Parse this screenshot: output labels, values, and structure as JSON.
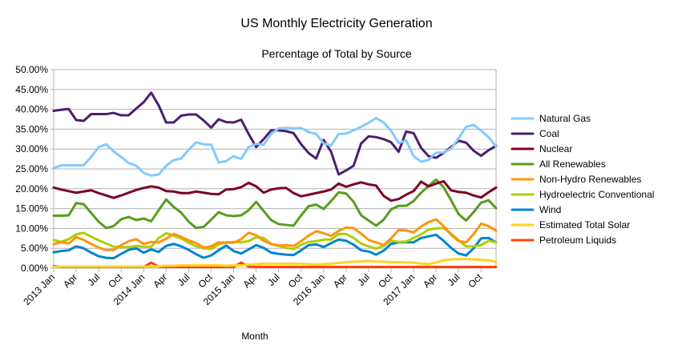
{
  "chart_data": {
    "type": "line",
    "title": "US Monthly Electricity Generation",
    "subtitle": "Percentage of Total by Source",
    "xlabel": "Month",
    "ylabel": "",
    "ylim": [
      0,
      50
    ],
    "y_ticks": [
      "0.00%",
      "5.00%",
      "10.00%",
      "15.00%",
      "20.00%",
      "25.00%",
      "30.00%",
      "35.00%",
      "40.00%",
      "45.00%",
      "50.00%"
    ],
    "x_tick_labels": [
      "2013 Jan",
      "Apr",
      "Jul",
      "Oct",
      "2014 Jan",
      "Apr",
      "Jul",
      "Oct",
      "2015 Jan",
      "Apr",
      "Jul",
      "Oct",
      "2016 Jan",
      "Apr",
      "Jul",
      "Oct",
      "2017 Jan",
      "Apr",
      "Jul",
      "Oct"
    ],
    "grid": "horizontal",
    "legend_position": "right",
    "x_count": 60,
    "series": [
      {
        "name": "Natural Gas",
        "color": "#83CAFF",
        "values": [
          25.2,
          25.9,
          25.9,
          25.9,
          25.9,
          28.0,
          30.5,
          31.2,
          29.4,
          28.0,
          26.5,
          25.8,
          24.0,
          23.3,
          23.6,
          25.8,
          27.2,
          27.6,
          29.8,
          31.7,
          31.2,
          31.1,
          26.6,
          27.0,
          28.2,
          27.5,
          30.5,
          31.3,
          31.1,
          33.8,
          35.2,
          35.3,
          35.2,
          35.3,
          34.3,
          33.8,
          31.4,
          30.9,
          33.8,
          33.9,
          34.7,
          35.6,
          36.6,
          37.8,
          36.7,
          34.6,
          31.5,
          32.2,
          28.2,
          26.8,
          27.3,
          29.1,
          29.1,
          30.1,
          32.7,
          35.6,
          36.1,
          34.6,
          33.0,
          30.6
        ]
      },
      {
        "name": "Coal",
        "color": "#4B1F6F",
        "values": [
          39.6,
          39.9,
          40.1,
          37.3,
          37.1,
          38.8,
          38.8,
          38.8,
          39.1,
          38.5,
          38.5,
          40.2,
          41.8,
          44.2,
          41.0,
          36.7,
          36.7,
          38.4,
          38.7,
          38.7,
          37.2,
          35.4,
          37.5,
          36.8,
          36.7,
          37.4,
          33.8,
          30.5,
          32.5,
          34.7,
          34.7,
          34.5,
          34.0,
          31.2,
          29.0,
          27.6,
          32.3,
          29.3,
          23.6,
          24.6,
          25.8,
          31.4,
          33.2,
          33.0,
          32.5,
          31.7,
          29.3,
          34.4,
          34.0,
          30.3,
          28.2,
          27.8,
          29.0,
          30.5,
          32.1,
          31.6,
          29.6,
          28.3,
          29.7,
          30.8
        ]
      },
      {
        "name": "Nuclear",
        "color": "#7E0021",
        "values": [
          20.3,
          19.8,
          19.4,
          19.0,
          19.3,
          19.6,
          18.9,
          18.3,
          17.7,
          18.3,
          19.0,
          19.7,
          20.2,
          20.6,
          20.3,
          19.4,
          19.3,
          18.9,
          18.9,
          19.3,
          19.0,
          18.7,
          18.6,
          19.8,
          19.9,
          20.4,
          21.5,
          20.6,
          19.0,
          19.8,
          20.1,
          20.2,
          18.9,
          18.1,
          18.5,
          18.9,
          19.3,
          19.8,
          21.3,
          20.5,
          21.1,
          21.6,
          21.1,
          20.8,
          18.2,
          17.0,
          17.4,
          18.5,
          19.4,
          21.8,
          20.6,
          21.3,
          21.9,
          19.6,
          19.2,
          19.0,
          18.3,
          17.8,
          19.1,
          20.3
        ]
      },
      {
        "name": "All Renewables",
        "color": "#579D1C",
        "values": [
          13.2,
          13.2,
          13.3,
          16.4,
          16.1,
          13.9,
          11.7,
          10.1,
          10.6,
          12.3,
          12.9,
          12.1,
          12.5,
          11.8,
          14.6,
          17.3,
          15.4,
          14.0,
          11.7,
          10.1,
          10.4,
          12.2,
          14.1,
          13.3,
          13.1,
          13.3,
          14.6,
          16.7,
          14.4,
          12.1,
          11.1,
          10.9,
          10.7,
          13.3,
          15.6,
          16.0,
          14.9,
          16.9,
          19.1,
          18.8,
          16.7,
          13.3,
          12.0,
          10.7,
          12.2,
          14.8,
          15.7,
          15.7,
          16.9,
          19.0,
          20.7,
          22.3,
          20.4,
          17.1,
          13.6,
          12.0,
          14.1,
          16.5,
          17.1,
          15.1
        ]
      },
      {
        "name": "Non-Hydro Renewables",
        "color": "#FF950E",
        "values": [
          6.0,
          6.6,
          6.2,
          7.8,
          7.1,
          6.1,
          5.2,
          4.5,
          4.6,
          5.8,
          6.8,
          7.3,
          6.1,
          6.6,
          6.5,
          7.4,
          8.6,
          7.9,
          7.0,
          6.3,
          5.2,
          5.5,
          6.5,
          6.4,
          6.4,
          7.3,
          8.9,
          8.3,
          6.9,
          6.1,
          5.7,
          5.8,
          5.6,
          6.8,
          8.2,
          9.3,
          8.8,
          8.1,
          9.4,
          10.2,
          10.1,
          8.7,
          7.1,
          6.5,
          5.8,
          7.5,
          9.6,
          9.5,
          9.0,
          10.5,
          11.6,
          12.3,
          10.6,
          8.4,
          6.8,
          6.5,
          8.6,
          11.2,
          10.6,
          9.4
        ]
      },
      {
        "name": "Hydroelectric Conventional",
        "color": "#AECF00",
        "values": [
          7.1,
          6.6,
          7.3,
          8.5,
          8.9,
          7.9,
          7.0,
          6.2,
          5.4,
          5.3,
          5.3,
          5.6,
          5.4,
          5.4,
          7.6,
          8.8,
          8.2,
          7.5,
          6.4,
          5.5,
          5.0,
          4.8,
          6.0,
          6.5,
          6.6,
          6.5,
          6.8,
          7.8,
          7.6,
          6.1,
          5.6,
          5.1,
          4.8,
          5.9,
          6.6,
          6.8,
          7.2,
          7.2,
          8.6,
          8.6,
          7.6,
          6.2,
          5.5,
          4.9,
          5.6,
          6.9,
          6.6,
          6.7,
          7.6,
          8.5,
          9.7,
          10.0,
          10.1,
          8.7,
          7.0,
          5.5,
          5.5,
          5.8,
          6.9,
          6.5
        ]
      },
      {
        "name": "Wind",
        "color": "#0084D1",
        "values": [
          4.0,
          4.3,
          4.5,
          5.5,
          5.0,
          3.9,
          3.0,
          2.6,
          2.5,
          3.6,
          4.6,
          5.0,
          3.9,
          4.7,
          4.1,
          5.6,
          6.1,
          5.5,
          4.6,
          3.5,
          2.6,
          3.2,
          4.5,
          5.7,
          4.3,
          3.7,
          4.7,
          5.8,
          5.1,
          3.9,
          3.6,
          3.4,
          3.3,
          4.5,
          5.8,
          6.0,
          5.3,
          6.3,
          7.2,
          6.9,
          5.9,
          4.5,
          4.2,
          3.4,
          4.4,
          6.1,
          6.5,
          6.5,
          6.5,
          7.6,
          8.0,
          8.4,
          6.9,
          5.1,
          3.7,
          3.2,
          5.0,
          7.5,
          7.6,
          6.5
        ]
      },
      {
        "name": "Estimated Total Solar",
        "color": "#FFD320",
        "values": [
          0.3,
          0.4,
          0.4,
          0.4,
          0.4,
          0.4,
          0.4,
          0.4,
          0.4,
          0.4,
          0.4,
          0.4,
          0.4,
          0.4,
          0.5,
          0.6,
          0.6,
          0.7,
          0.7,
          0.7,
          0.7,
          0.7,
          0.7,
          0.6,
          0.7,
          0.7,
          0.9,
          1.0,
          1.1,
          1.1,
          1.1,
          1.1,
          1.1,
          1.1,
          1.0,
          0.9,
          1.0,
          1.1,
          1.3,
          1.5,
          1.6,
          1.7,
          1.8,
          1.7,
          1.6,
          1.5,
          1.5,
          1.4,
          1.4,
          1.1,
          1.0,
          1.4,
          2.0,
          2.2,
          2.3,
          2.3,
          2.2,
          2.1,
          2.0,
          1.5
        ]
      },
      {
        "name": "Petroleum Liquids",
        "color": "#FF420E",
        "values": [
          0.5,
          0.3,
          0.3,
          0.3,
          0.3,
          0.3,
          0.3,
          0.3,
          0.3,
          0.3,
          0.3,
          0.3,
          0.3,
          1.4,
          0.4,
          0.3,
          0.3,
          0.3,
          0.3,
          0.3,
          0.3,
          0.3,
          0.3,
          0.3,
          0.3,
          1.4,
          0.4,
          0.3,
          0.3,
          0.3,
          0.3,
          0.3,
          0.3,
          0.3,
          0.3,
          0.3,
          0.3,
          0.3,
          0.3,
          0.3,
          0.3,
          0.3,
          0.3,
          0.3,
          0.3,
          0.3,
          0.3,
          0.3,
          0.3,
          0.3,
          0.3,
          0.3,
          0.3,
          0.3,
          0.3,
          0.3,
          0.3,
          0.3,
          0.3,
          0.3
        ]
      }
    ]
  }
}
